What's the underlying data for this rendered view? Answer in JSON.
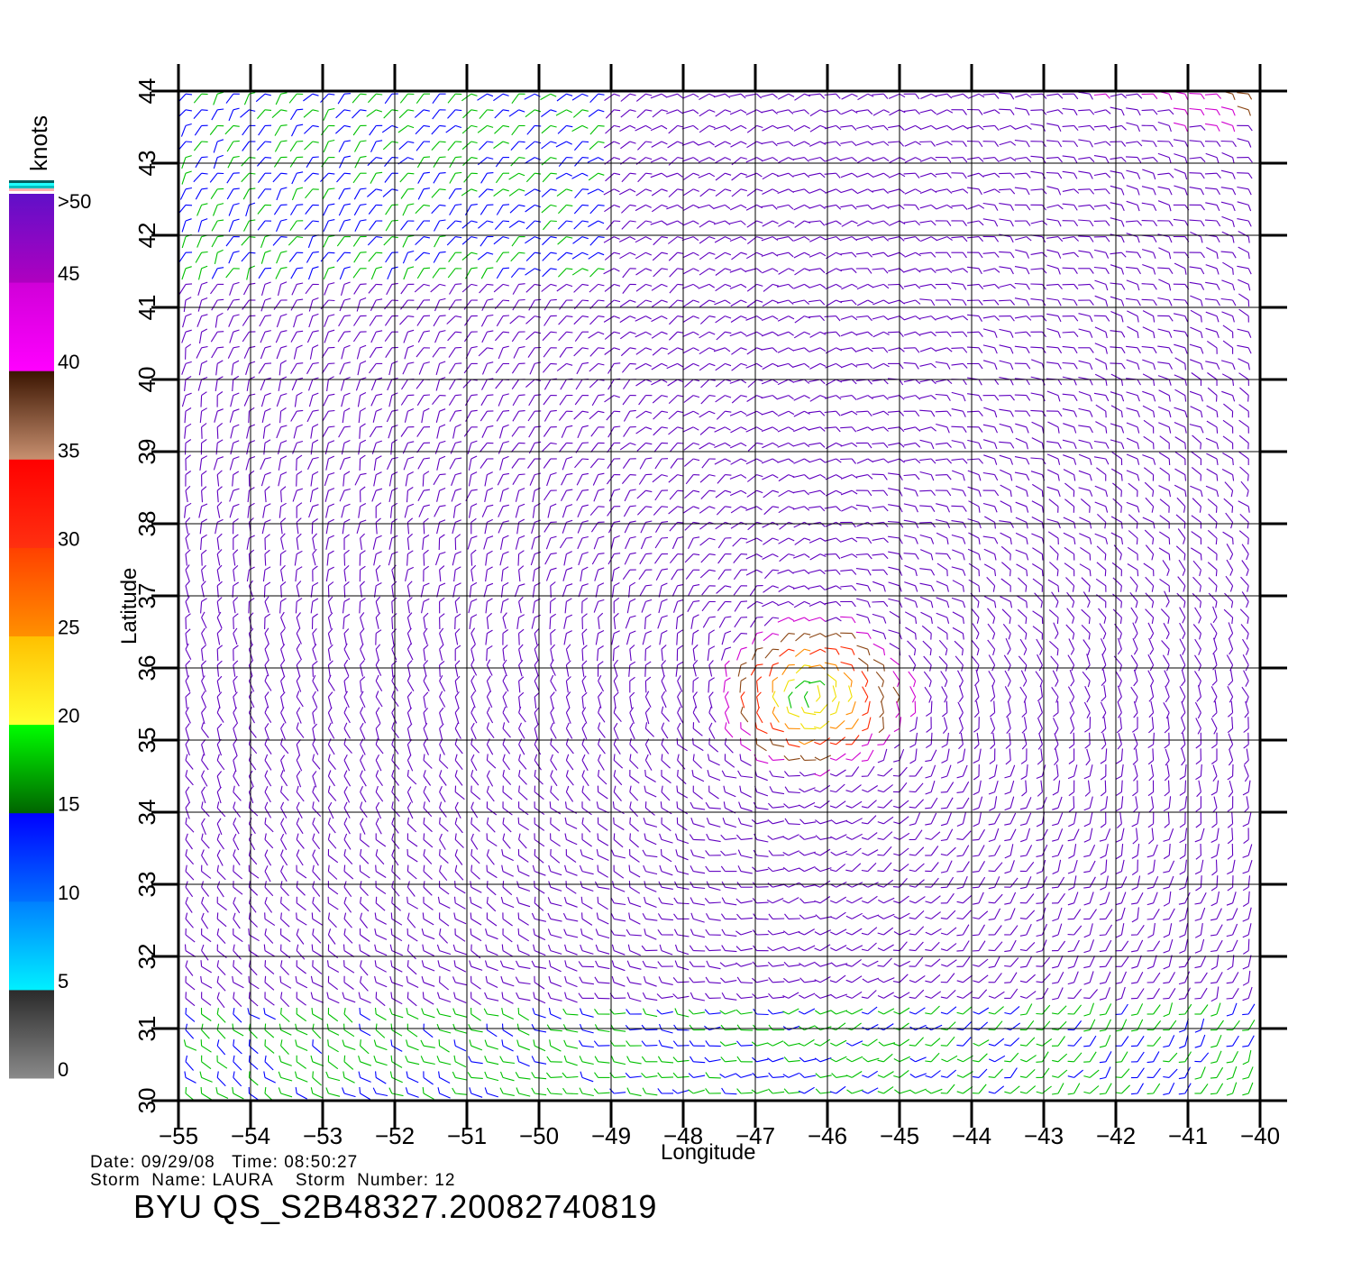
{
  "map": {
    "lon_range": [
      -55,
      -40
    ],
    "lat_range": [
      30,
      44
    ],
    "lon_ticks": [
      "−55",
      "−54",
      "−53",
      "−52",
      "−51",
      "−50",
      "−49",
      "−48",
      "−47",
      "−46",
      "−45",
      "−44",
      "−43",
      "−42",
      "−41",
      "−40"
    ],
    "lat_ticks": [
      "30",
      "31",
      "32",
      "33",
      "34",
      "35",
      "36",
      "37",
      "38",
      "39",
      "40",
      "41",
      "42",
      "43",
      "44"
    ],
    "x_axis_title": "Longitude",
    "y_axis_title": "Latitude",
    "storm_center": {
      "lon": -46.2,
      "lat": 35.6
    },
    "grid_lines": true
  },
  "legend": {
    "units": "knots",
    "labels": [
      ">50",
      "45",
      "40",
      "35",
      "30",
      "25",
      "20",
      "15",
      "10",
      "5",
      "0"
    ],
    "bands": [
      {
        "from": 0,
        "to": 5,
        "colors": [
          "#8a8a8a",
          "#2a2a2a"
        ]
      },
      {
        "from": 5,
        "to": 10,
        "colors": [
          "#00f0ff",
          "#0080ff"
        ]
      },
      {
        "from": 10,
        "to": 15,
        "colors": [
          "#0070ff",
          "#0000ff"
        ]
      },
      {
        "from": 15,
        "to": 20,
        "colors": [
          "#006400",
          "#00ff00"
        ]
      },
      {
        "from": 20,
        "to": 25,
        "colors": [
          "#ffff30",
          "#ffc000"
        ]
      },
      {
        "from": 25,
        "to": 30,
        "colors": [
          "#ff9000",
          "#ff4000"
        ]
      },
      {
        "from": 30,
        "to": 35,
        "colors": [
          "#ff3010",
          "#ff0000"
        ]
      },
      {
        "from": 35,
        "to": 40,
        "colors": [
          "#c89070",
          "#3a1400"
        ]
      },
      {
        "from": 40,
        "to": 45,
        "colors": [
          "#ff00ff",
          "#d000d8"
        ]
      },
      {
        "from": 45,
        "to": 50,
        "colors": [
          "#b000c0",
          "#6010c8"
        ]
      }
    ],
    "top_stripes": [
      "#ffffff",
      "#ffb0b0",
      "#00c0c0",
      "#20ffff",
      "#006060"
    ]
  },
  "footer": {
    "date_line": "Date: 09/29/08   Time: 08:50:27",
    "storm_line": "Storm  Name: LAURA    Storm  Number: 12",
    "file_title": "BYU  QS_S2B48327.20082740819"
  }
}
